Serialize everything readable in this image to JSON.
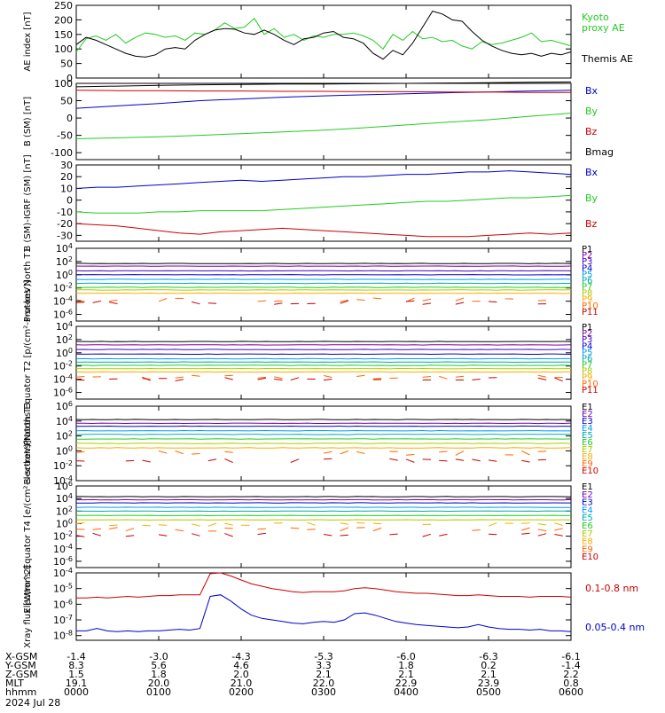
{
  "chart_data": [
    {
      "type": "line",
      "id": "ae",
      "ylabel": "AE index [nT]",
      "ylim": [
        0,
        250
      ],
      "yticks": [
        "0",
        "50",
        "100",
        "150",
        "200",
        "250"
      ],
      "series": [
        {
          "name": "Kyoto proxy AE",
          "color": "#22cc22",
          "values": [
            90,
            135,
            145,
            130,
            150,
            120,
            140,
            155,
            150,
            140,
            145,
            130,
            155,
            150,
            165,
            190,
            170,
            175,
            205,
            150,
            170,
            140,
            150,
            130,
            145,
            140,
            150,
            150,
            155,
            145,
            130,
            100,
            150,
            130,
            160,
            135,
            140,
            125,
            130,
            110,
            100,
            125,
            115,
            120,
            130,
            140,
            155,
            125,
            130,
            120,
            110
          ]
        },
        {
          "name": "Themis AE",
          "color": "#000000",
          "values": [
            115,
            140,
            130,
            115,
            100,
            85,
            75,
            72,
            80,
            100,
            105,
            100,
            130,
            150,
            165,
            170,
            168,
            155,
            150,
            165,
            150,
            130,
            115,
            135,
            140,
            155,
            160,
            140,
            135,
            120,
            85,
            65,
            95,
            80,
            120,
            175,
            230,
            220,
            200,
            195,
            160,
            130,
            110,
            95,
            85,
            80,
            85,
            75,
            85,
            80,
            90
          ]
        }
      ]
    },
    {
      "type": "line",
      "id": "bsm",
      "ylabel": "B (SM) [nT]",
      "ylim": [
        -120,
        100
      ],
      "yticks": [
        "-100",
        "-50",
        "0",
        "50",
        "100"
      ],
      "series": [
        {
          "name": "Bx",
          "color": "#0000cc",
          "values": [
            28,
            35,
            42,
            50,
            55,
            60,
            64,
            67,
            70,
            73,
            75,
            78,
            80
          ]
        },
        {
          "name": "By",
          "color": "#22cc22",
          "values": [
            -60,
            -57,
            -54,
            -50,
            -45,
            -40,
            -35,
            -28,
            -20,
            -12,
            -5,
            5,
            14
          ]
        },
        {
          "name": "Bz",
          "color": "#cc0000",
          "values": [
            80,
            79,
            79,
            78,
            78,
            77,
            77,
            76,
            76,
            75,
            75,
            74,
            74
          ]
        },
        {
          "name": "Bmag",
          "color": "#000000",
          "values": [
            90,
            92,
            94,
            96,
            97,
            98,
            98,
            99,
            100,
            101,
            102,
            103,
            104
          ]
        }
      ]
    },
    {
      "type": "line",
      "id": "bdiff",
      "ylabel": "B (SM)-IGRF (SM) [nT]",
      "ylim": [
        -35,
        30
      ],
      "yticks": [
        "-30",
        "-20",
        "-10",
        "0",
        "10",
        "20",
        "30"
      ],
      "series": [
        {
          "name": "Bx",
          "color": "#0000cc",
          "values": [
            10,
            11,
            11,
            12,
            13,
            14,
            15,
            16,
            17,
            16,
            17,
            18,
            19,
            20,
            20,
            21,
            22,
            22,
            23,
            24,
            24,
            25,
            24,
            23,
            22
          ]
        },
        {
          "name": "By",
          "color": "#22cc22",
          "values": [
            -10,
            -11,
            -11,
            -11,
            -10,
            -10,
            -9,
            -9,
            -9,
            -9,
            -8,
            -7,
            -6,
            -5,
            -4,
            -3,
            -2,
            -1,
            -1,
            0,
            1,
            2,
            2,
            3,
            4
          ]
        },
        {
          "name": "Bz",
          "color": "#cc0000",
          "values": [
            -20,
            -21,
            -22,
            -24,
            -26,
            -28,
            -29,
            -27,
            -26,
            -25,
            -24,
            -25,
            -26,
            -27,
            -28,
            -29,
            -30,
            -31,
            -31,
            -31,
            -30,
            -29,
            -28,
            -29,
            -28
          ]
        }
      ]
    },
    {
      "type": "line",
      "id": "pn",
      "ylabel": "Protons North T1",
      "log": true,
      "ylim": [
        -7,
        4
      ],
      "yticks": [
        "10^4",
        "10^2",
        "10^0",
        "10^-2",
        "10^-4",
        "10^-6"
      ],
      "series": [
        {
          "name": "P1",
          "color": "#000000",
          "level": 1.7
        },
        {
          "name": "P2",
          "color": "#7700aa",
          "level": 1.3
        },
        {
          "name": "P3",
          "color": "#4400cc",
          "level": 0.6
        },
        {
          "name": "P4",
          "color": "#0000cc",
          "level": 0.0
        },
        {
          "name": "P5",
          "color": "#0099ff",
          "level": -0.7
        },
        {
          "name": "P6",
          "color": "#00aaaa",
          "level": -1.3
        },
        {
          "name": "P7",
          "color": "#22cc22",
          "level": -1.9
        },
        {
          "name": "P8",
          "color": "#aacc00",
          "level": -2.3
        },
        {
          "name": "P9",
          "color": "#ffaa00",
          "level": -2.8
        },
        {
          "name": "P10",
          "color": "#ff6600",
          "level": -3.8
        },
        {
          "name": "P11",
          "color": "#cc0000",
          "level": -4.2
        }
      ]
    },
    {
      "type": "line",
      "id": "pe",
      "ylabel": "Protons Equator T2 [p/(cm²-s-sr-keV)]",
      "log": true,
      "ylim": [
        -7,
        4
      ],
      "yticks": [
        "10^4",
        "10^2",
        "10^0",
        "10^-2",
        "10^-4",
        "10^-6"
      ],
      "series": [
        {
          "name": "P1",
          "color": "#000000",
          "level": 1.7
        },
        {
          "name": "P2",
          "color": "#7700aa",
          "level": 1.2
        },
        {
          "name": "P3",
          "color": "#4400cc",
          "level": 0.5
        },
        {
          "name": "P4",
          "color": "#0000cc",
          "level": -0.2
        },
        {
          "name": "P5",
          "color": "#0099ff",
          "level": -0.9
        },
        {
          "name": "P6",
          "color": "#00aaaa",
          "level": -1.4
        },
        {
          "name": "P7",
          "color": "#22cc22",
          "level": -1.9
        },
        {
          "name": "P8",
          "color": "#aacc00",
          "level": -2.4
        },
        {
          "name": "P9",
          "color": "#ffaa00",
          "level": -2.9
        },
        {
          "name": "P10",
          "color": "#ff6600",
          "level": -3.7
        },
        {
          "name": "P11",
          "color": "#cc0000",
          "level": -4.0
        }
      ]
    },
    {
      "type": "line",
      "id": "en",
      "ylabel": "Electrons North T3",
      "log": true,
      "ylim": [
        -4,
        6
      ],
      "yticks": [
        "10^6",
        "10^4",
        "10^2",
        "10^0",
        "10^-2",
        "10^-4"
      ],
      "series": [
        {
          "name": "E1",
          "color": "#000000",
          "level": 4.2
        },
        {
          "name": "E2",
          "color": "#7700aa",
          "level": 3.7
        },
        {
          "name": "E3",
          "color": "#0000cc",
          "level": 3.3
        },
        {
          "name": "E4",
          "color": "#0099ff",
          "level": 2.7
        },
        {
          "name": "E5",
          "color": "#00aaaa",
          "level": 2.2
        },
        {
          "name": "E6",
          "color": "#22cc22",
          "level": 1.6
        },
        {
          "name": "E7",
          "color": "#aacc00",
          "level": 1.0
        },
        {
          "name": "E8",
          "color": "#ffaa00",
          "level": 0.4
        },
        {
          "name": "E9",
          "color": "#ff6600",
          "level": -0.3
        },
        {
          "name": "E10",
          "color": "#cc0000",
          "level": -1.3
        }
      ]
    },
    {
      "type": "line",
      "id": "ee",
      "ylabel": "Electrons Equator T4 [e/(cm²-s-sr-keV)]",
      "log": true,
      "ylim": [
        -7,
        6
      ],
      "yticks": [
        "10^6",
        "10^4",
        "10^2",
        "10^0",
        "10^-2",
        "10^-4",
        "10^-6"
      ],
      "series": [
        {
          "name": "E1",
          "color": "#000000",
          "level": 4.3
        },
        {
          "name": "E2",
          "color": "#7700aa",
          "level": 3.8
        },
        {
          "name": "E3",
          "color": "#0000cc",
          "level": 3.3
        },
        {
          "name": "E4",
          "color": "#0099ff",
          "level": 2.6
        },
        {
          "name": "E5",
          "color": "#00aaaa",
          "level": 2.0
        },
        {
          "name": "E6",
          "color": "#22cc22",
          "level": 1.3
        },
        {
          "name": "E7",
          "color": "#aacc00",
          "level": 0.6
        },
        {
          "name": "E8",
          "color": "#ffaa00",
          "level": -0.1
        },
        {
          "name": "E9",
          "color": "#ff6600",
          "level": -0.9
        },
        {
          "name": "E10",
          "color": "#cc0000",
          "level": -1.8
        }
      ]
    },
    {
      "type": "line",
      "id": "xray",
      "ylabel": "Xray flux [W/m^2]",
      "log": true,
      "ylim": [
        -8.3,
        -4
      ],
      "yticks": [
        "10^-4",
        "10^-5",
        "10^-6",
        "10^-7",
        "10^-8"
      ],
      "series": [
        {
          "name": "0.1-0.8 nm",
          "color": "#cc0000",
          "values": [
            -5.6,
            -5.6,
            -5.55,
            -5.6,
            -5.55,
            -5.5,
            -5.55,
            -5.5,
            -5.45,
            -5.45,
            -5.4,
            -5.4,
            -5.4,
            -4.05,
            -4.0,
            -4.2,
            -4.45,
            -4.7,
            -4.85,
            -5.0,
            -5.1,
            -5.2,
            -5.25,
            -5.2,
            -5.2,
            -5.2,
            -5.15,
            -5.0,
            -4.95,
            -5.0,
            -5.1,
            -5.2,
            -5.25,
            -5.3,
            -5.3,
            -5.35,
            -5.4,
            -5.45,
            -5.45,
            -5.4,
            -5.45,
            -5.5,
            -5.5,
            -5.5,
            -5.55,
            -5.5,
            -5.5,
            -5.5,
            -5.55
          ]
        },
        {
          "name": "0.05-0.4 nm",
          "color": "#0000cc",
          "values": [
            -7.7,
            -7.7,
            -7.55,
            -7.7,
            -7.75,
            -7.7,
            -7.75,
            -7.7,
            -7.7,
            -7.65,
            -7.6,
            -7.65,
            -7.55,
            -5.5,
            -5.4,
            -5.8,
            -6.3,
            -6.7,
            -6.9,
            -7.0,
            -7.1,
            -7.2,
            -7.25,
            -7.15,
            -7.1,
            -7.15,
            -7.0,
            -6.6,
            -6.55,
            -6.7,
            -6.9,
            -7.1,
            -7.2,
            -7.3,
            -7.35,
            -7.4,
            -7.45,
            -7.5,
            -7.45,
            -7.3,
            -7.45,
            -7.55,
            -7.6,
            -7.6,
            -7.65,
            -7.6,
            -7.7,
            -7.7,
            -7.75
          ]
        }
      ]
    }
  ],
  "x_ticks": [
    "0000",
    "0100",
    "0200",
    "0300",
    "0400",
    "0500",
    "0600"
  ],
  "ephemeris": {
    "rows": [
      {
        "label": "X-GSM",
        "values": [
          "-1.4",
          "-3.0",
          "-4.3",
          "-5.3",
          "-6.0",
          "-6.3",
          "-6.1"
        ]
      },
      {
        "label": "Y-GSM",
        "values": [
          "8.3",
          "5.6",
          "4.6",
          "3.3",
          "1.8",
          "0.2",
          "-1.4"
        ]
      },
      {
        "label": "Z-GSM",
        "values": [
          "1.5",
          "1.8",
          "2.0",
          "2.1",
          "2.1",
          "2.1",
          "2.2"
        ]
      },
      {
        "label": "MLT",
        "values": [
          "19.1",
          "20.0",
          "21.0",
          "22.0",
          "22.9",
          "23.9",
          "0.8"
        ]
      },
      {
        "label": "hhmm",
        "values": [
          "0000",
          "0100",
          "0200",
          "0300",
          "0400",
          "0500",
          "0600"
        ]
      }
    ],
    "date": "2024 Jul 28"
  }
}
